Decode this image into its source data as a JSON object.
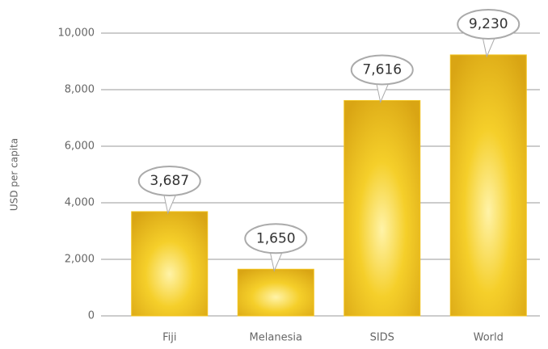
{
  "chart_data": {
    "type": "bar",
    "y_label": "USD per capita",
    "categories": [
      "Fiji",
      "Melanesia",
      "SIDS",
      "World"
    ],
    "values": [
      3687,
      1650,
      7616,
      9230
    ],
    "value_labels": [
      "3,687",
      "1,650",
      "7,616",
      "9,230"
    ],
    "color": "#f2c21b",
    "ylim": [
      0,
      10000
    ],
    "yticks": [
      0,
      {
        "value": 2000,
        "label": "2,000"
      },
      {
        "value": 4000,
        "label": "4,000"
      },
      {
        "value": 6000,
        "label": "6,000"
      },
      {
        "value": 8000,
        "label": "8,000"
      },
      {
        "value": 10000,
        "label": "10,000"
      }
    ],
    "grid": true
  }
}
